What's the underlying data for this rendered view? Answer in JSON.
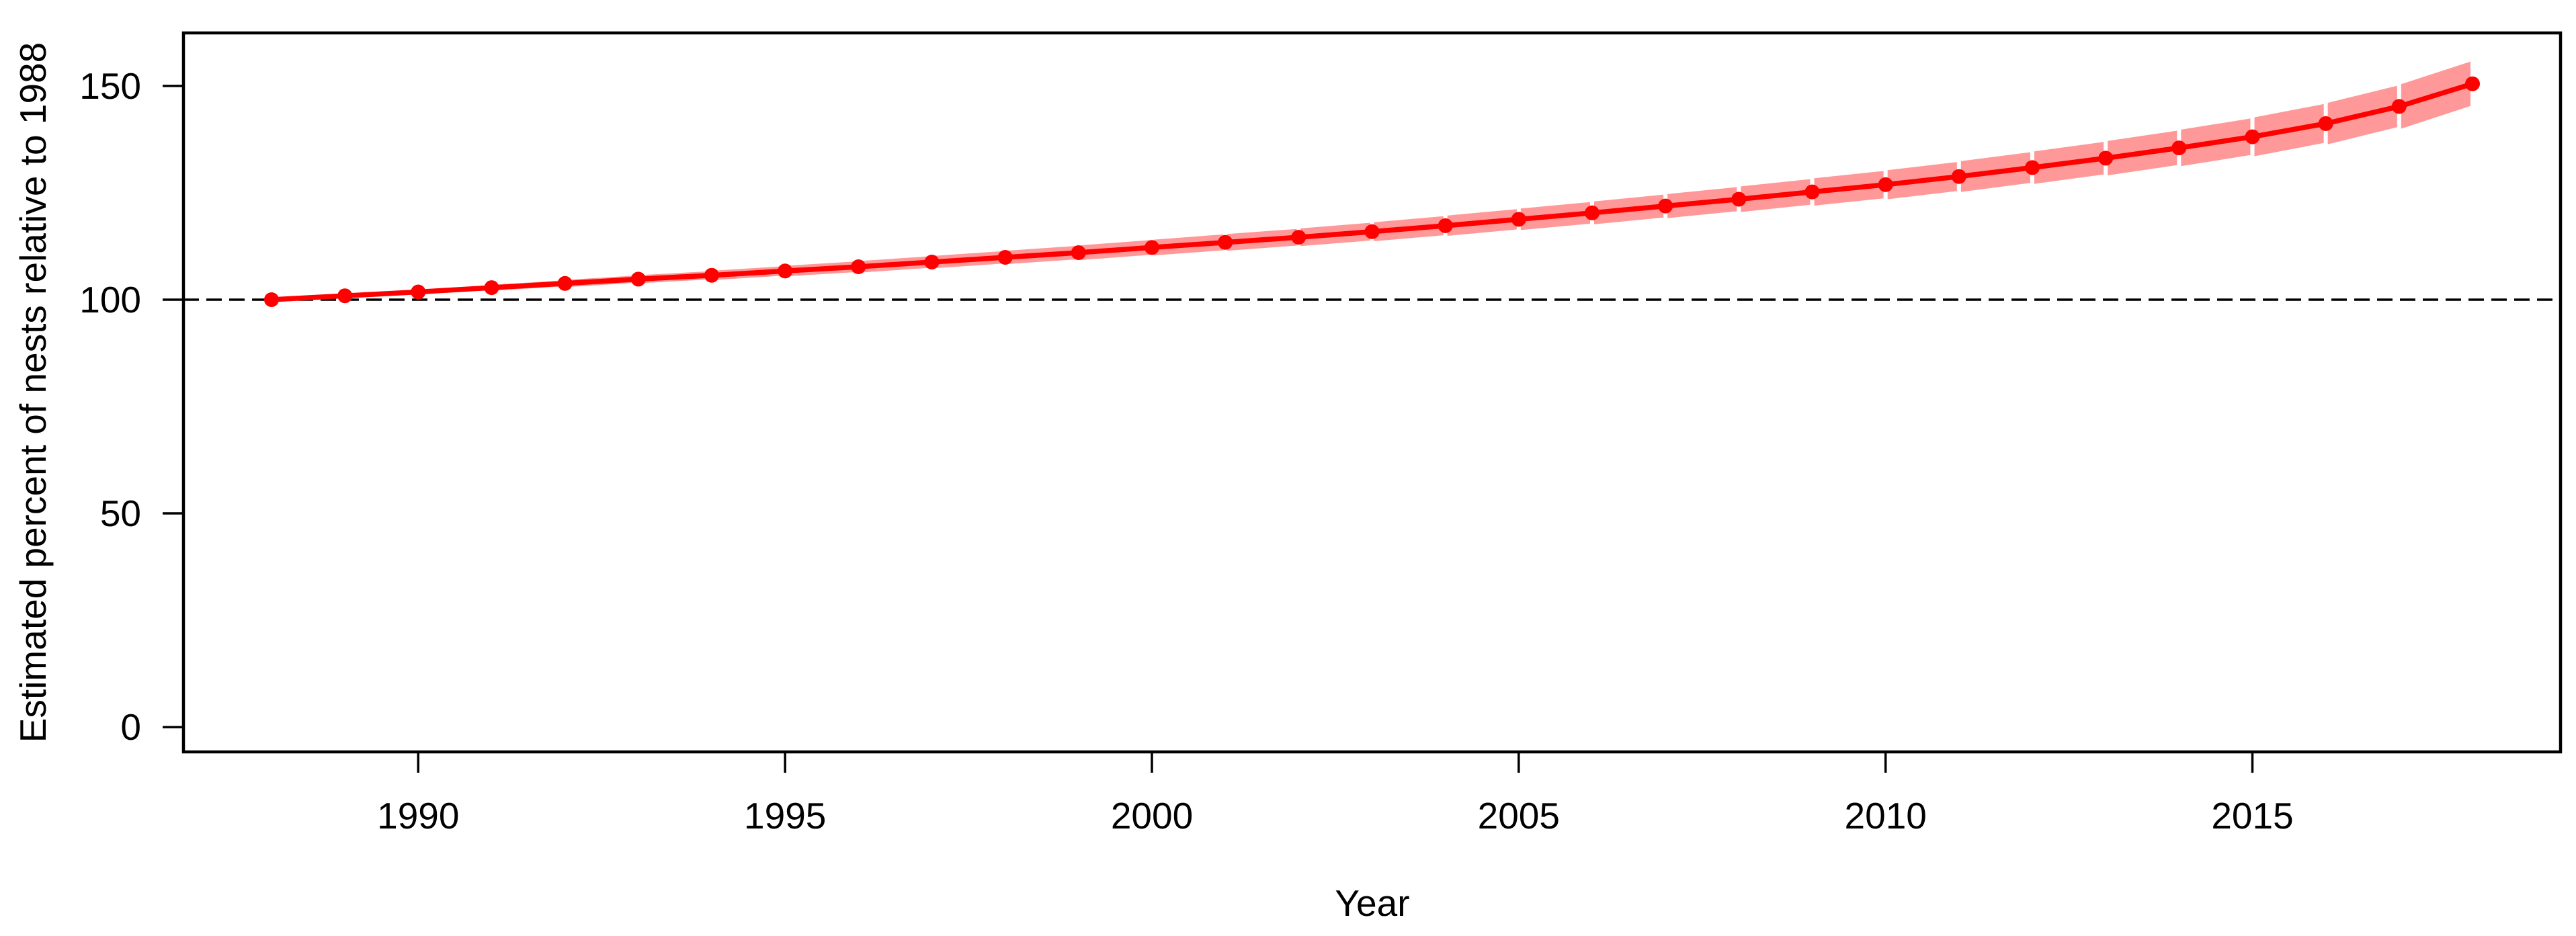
{
  "page": {
    "background_color": "#FFFFFF"
  },
  "chart_data": {
    "type": "line",
    "title": "",
    "xlabel": "Year",
    "ylabel": "Estimated percent of nests relative to 1988",
    "xlim": [
      1986.8,
      2019.2
    ],
    "ylim": [
      -5.8,
      162.4
    ],
    "x_ticks": [
      1990,
      1995,
      2000,
      2005,
      2010,
      2015
    ],
    "y_ticks": [
      0,
      50,
      100,
      150
    ],
    "grid": false,
    "legend_position": "none",
    "reference_line": {
      "y": 100,
      "style": "dashed",
      "color": "#000000"
    },
    "series": [
      {
        "name": "Estimated percent of nests relative to 1988",
        "color": "#FF0000",
        "band_color": "#FF9999",
        "marker": "filled-circle",
        "x": [
          1988,
          1989,
          1990,
          1991,
          1992,
          1993,
          1994,
          1995,
          1996,
          1997,
          1998,
          1999,
          2000,
          2001,
          2002,
          2003,
          2004,
          2005,
          2006,
          2007,
          2008,
          2009,
          2010,
          2011,
          2012,
          2013,
          2014,
          2015,
          2016,
          2017,
          2018
        ],
        "y": [
          100.0,
          100.9,
          101.8,
          102.8,
          103.8,
          104.8,
          105.7,
          106.7,
          107.7,
          108.8,
          109.9,
          111.0,
          112.2,
          113.4,
          114.6,
          115.9,
          117.3,
          118.8,
          120.3,
          121.9,
          123.5,
          125.2,
          126.9,
          128.8,
          130.9,
          133.1,
          135.5,
          138.1,
          141.2,
          145.2,
          150.5
        ],
        "lower": [
          99.8,
          100.6,
          101.4,
          102.2,
          103.0,
          103.9,
          104.7,
          105.5,
          106.4,
          107.4,
          108.4,
          109.4,
          110.4,
          111.5,
          112.6,
          113.8,
          115.0,
          116.4,
          117.7,
          119.2,
          120.6,
          122.1,
          123.6,
          125.3,
          127.2,
          129.2,
          131.4,
          133.7,
          136.5,
          140.2,
          145.1
        ],
        "upper": [
          100.2,
          101.2,
          102.2,
          103.4,
          104.6,
          105.7,
          106.7,
          107.9,
          109.0,
          110.2,
          111.4,
          112.7,
          114.0,
          115.3,
          116.6,
          118.1,
          119.6,
          121.3,
          122.9,
          124.7,
          126.4,
          128.3,
          130.2,
          132.3,
          134.6,
          137.0,
          139.7,
          142.5,
          145.9,
          150.2,
          155.9
        ]
      }
    ]
  },
  "style": {
    "axis_color": "#000000",
    "text_color": "#000000"
  }
}
